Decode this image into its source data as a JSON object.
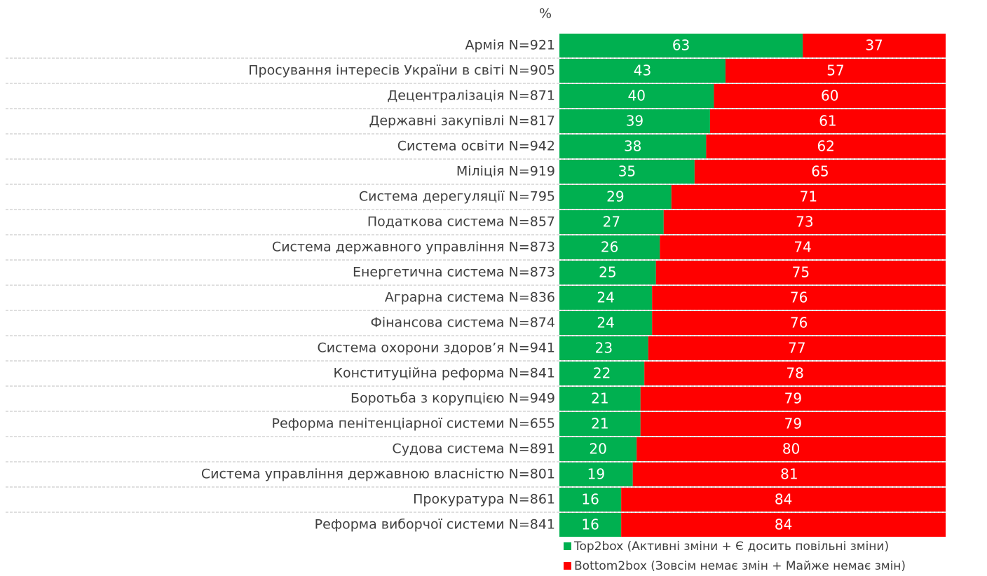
{
  "chart_data": {
    "type": "stacked_barh",
    "title": "%",
    "categories": [
      "Армія N=921",
      "Просування інтересів України в світі N=905",
      "Децентралізація N=871",
      "Державні закупівлі N=817",
      "Система освіти N=942",
      "Міліція N=919",
      "Система дерегуляції N=795",
      "Податкова система N=857",
      "Система державного управління N=873",
      "Енергетична система N=873",
      "Аграрна система N=836",
      "Фінансова система N=874",
      "Система охорони здоров’я N=941",
      "Конституційна реформа N=841",
      "Боротьба з корупцією N=949",
      "Реформа пенітенціарної системи N=655",
      "Судова система N=891",
      "Система управління державною власністю N=801",
      "Прокуратура N=861",
      "Реформа виборчої системи N=841"
    ],
    "series": [
      {
        "name": "Top2box (Активні зміни + Є досить повільні зміни)",
        "color": "#00b050",
        "values": [
          63,
          43,
          40,
          39,
          38,
          35,
          29,
          27,
          26,
          25,
          24,
          24,
          23,
          22,
          21,
          21,
          20,
          19,
          16,
          16
        ]
      },
      {
        "name": "Bottom2box (Зовсім немає змін + Майже немає змін)",
        "color": "#ff0000",
        "values": [
          37,
          57,
          60,
          61,
          62,
          65,
          71,
          73,
          74,
          75,
          76,
          76,
          77,
          78,
          79,
          79,
          80,
          81,
          84,
          84
        ]
      }
    ],
    "xlim": [
      0,
      100
    ]
  }
}
